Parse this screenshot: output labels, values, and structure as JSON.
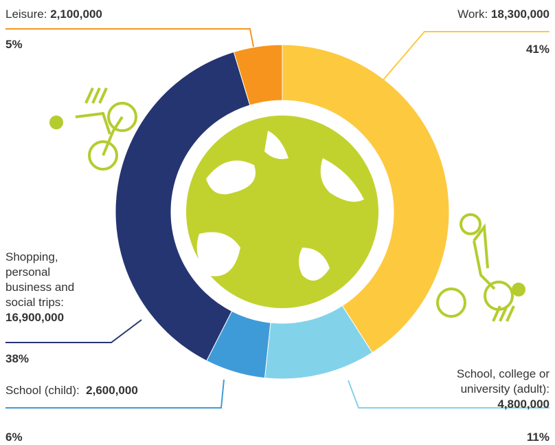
{
  "chart_data": {
    "type": "pie",
    "categories": [
      "Work:",
      "School, college or university (adult):",
      "School (child):",
      "Shopping, personal business and social trips:",
      "Leisure:"
    ],
    "values": [
      18300000,
      4800000,
      2600000,
      16900000,
      2100000
    ],
    "value_labels": [
      "18,300,000",
      "4,800,000",
      "2,600,000",
      "16,900,000",
      "2,100,000"
    ],
    "percent_labels": [
      "41%",
      "11%",
      "6%",
      "38%",
      "5%"
    ],
    "colors": [
      "#fdc93f",
      "#82d2ea",
      "#3f9bd7",
      "#253571",
      "#f7941d"
    ]
  }
}
